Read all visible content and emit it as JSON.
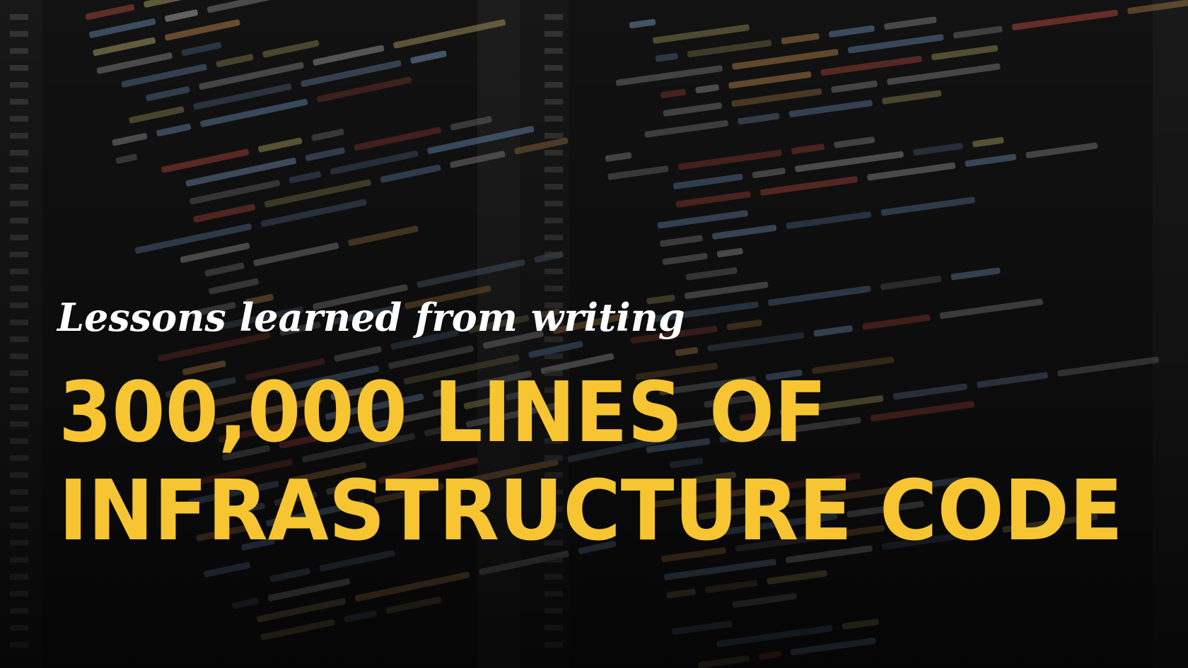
{
  "banner": {
    "subtitle": "Lessons learned from writing",
    "headline": [
      "300,000 LINES OF",
      "INFRASTRUCTURE CODE"
    ]
  }
}
